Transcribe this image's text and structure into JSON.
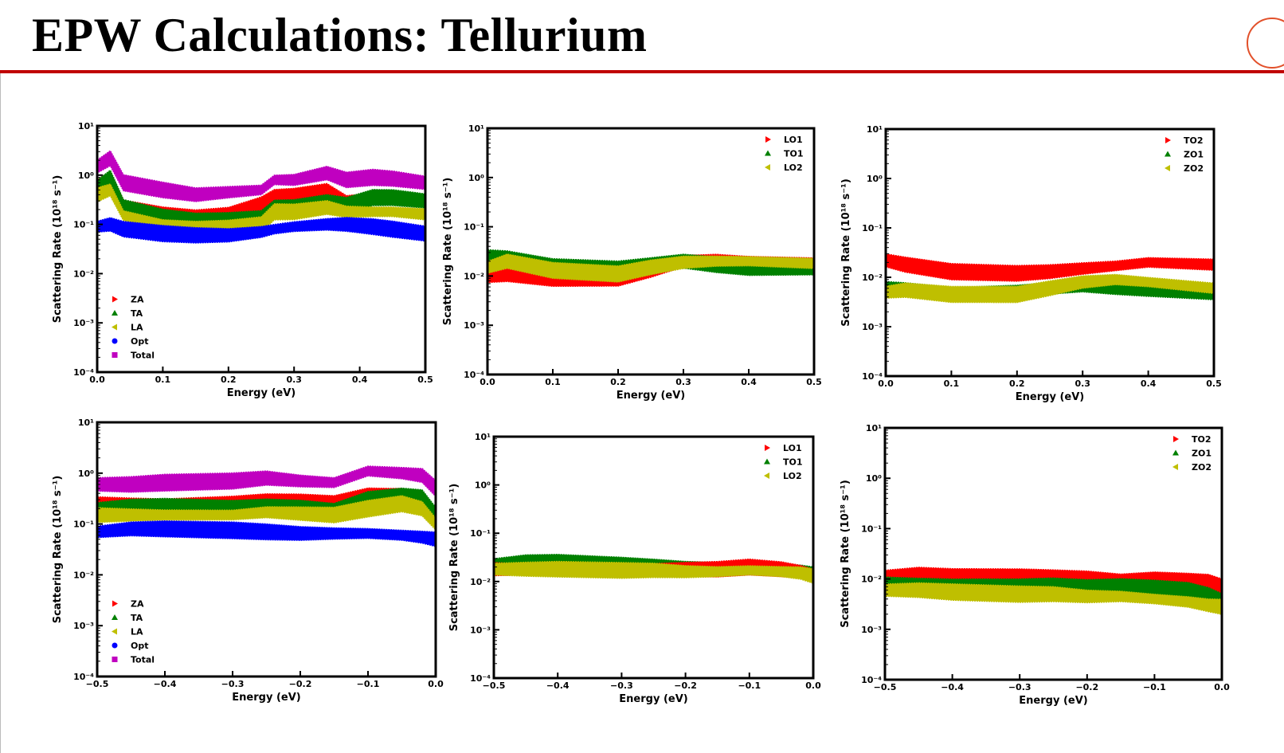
{
  "slide": {
    "title": "EPW Calculations: Tellurium"
  },
  "chart_data": [
    {
      "type": "area",
      "title": "",
      "xlabel": "Energy (eV)",
      "ylabel": "Scattering Rate (10¹⁸ s⁻¹)",
      "xlim": [
        0,
        0.5
      ],
      "ylim": [
        0.0001,
        10
      ],
      "yscale": "log",
      "legend": "bottom-left",
      "xticks": [
        "0.0",
        "0.1",
        "0.2",
        "0.3",
        "0.4",
        "0.5"
      ],
      "xtick_values": [
        0,
        0.1,
        0.2,
        0.3,
        0.4,
        0.5
      ],
      "yticks": [
        "10⁻⁴",
        "10⁻³",
        "10⁻²",
        "10⁻¹",
        "10⁰",
        "10¹"
      ],
      "x": [
        0,
        0.02,
        0.04,
        0.1,
        0.15,
        0.2,
        0.25,
        0.27,
        0.3,
        0.35,
        0.38,
        0.42,
        0.45,
        0.5
      ],
      "series": [
        {
          "name": "Total",
          "color": "#c000c0",
          "marker": "square",
          "values": [
            1.5,
            2.2,
            0.7,
            0.5,
            0.4,
            0.45,
            0.5,
            0.8,
            0.8,
            1.1,
            0.8,
            0.9,
            0.85,
            0.7
          ]
        },
        {
          "name": "ZA",
          "color": "#ff0000",
          "marker": "triangle-right",
          "values": [
            0.6,
            0.9,
            0.25,
            0.18,
            0.15,
            0.16,
            0.25,
            0.35,
            0.38,
            0.5,
            0.3,
            0.35,
            0.35,
            0.3
          ]
        },
        {
          "name": "TA",
          "color": "#008000",
          "marker": "triangle-up",
          "values": [
            0.6,
            0.9,
            0.22,
            0.14,
            0.12,
            0.13,
            0.15,
            0.25,
            0.25,
            0.3,
            0.25,
            0.35,
            0.35,
            0.3
          ]
        },
        {
          "name": "LA",
          "color": "#bfbf00",
          "marker": "triangle-left",
          "values": [
            0.4,
            0.5,
            0.15,
            0.1,
            0.09,
            0.09,
            0.1,
            0.18,
            0.18,
            0.22,
            0.18,
            0.18,
            0.18,
            0.16
          ]
        },
        {
          "name": "Opt",
          "color": "#0000ff",
          "marker": "circle",
          "values": [
            0.09,
            0.1,
            0.08,
            0.065,
            0.06,
            0.06,
            0.07,
            0.08,
            0.09,
            0.1,
            0.1,
            0.09,
            0.08,
            0.065
          ]
        }
      ],
      "legend_order": [
        "ZA",
        "TA",
        "LA",
        "Opt",
        "Total"
      ]
    },
    {
      "type": "area",
      "title": "",
      "xlabel": "Energy (eV)",
      "ylabel": "Scattering Rate (10¹⁸ s⁻¹)",
      "xlim": [
        0,
        0.5
      ],
      "ylim": [
        0.0001,
        10
      ],
      "yscale": "log",
      "legend": "top-right",
      "xticks": [
        "0.0",
        "0.1",
        "0.2",
        "0.3",
        "0.4",
        "0.5"
      ],
      "xtick_values": [
        0,
        0.1,
        0.2,
        0.3,
        0.4,
        0.5
      ],
      "yticks": [
        "10⁻⁴",
        "10⁻³",
        "10⁻²",
        "10⁻¹",
        "10⁰",
        "10¹"
      ],
      "x": [
        0,
        0.03,
        0.1,
        0.2,
        0.25,
        0.3,
        0.35,
        0.4,
        0.5
      ],
      "series": [
        {
          "name": "LO1",
          "color": "#ff0000",
          "marker": "triangle-right",
          "values": [
            0.01,
            0.011,
            0.009,
            0.009,
            0.013,
            0.02,
            0.022,
            0.02,
            0.018
          ]
        },
        {
          "name": "TO1",
          "color": "#008000",
          "marker": "triangle-up",
          "values": [
            0.025,
            0.025,
            0.018,
            0.016,
            0.018,
            0.02,
            0.017,
            0.015,
            0.015
          ]
        },
        {
          "name": "LO2",
          "color": "#bfbf00",
          "marker": "triangle-left",
          "values": [
            0.015,
            0.02,
            0.013,
            0.011,
            0.015,
            0.019,
            0.02,
            0.02,
            0.018
          ]
        }
      ],
      "legend_order": [
        "LO1",
        "TO1",
        "LO2"
      ]
    },
    {
      "type": "area",
      "title": "",
      "xlabel": "Energy (eV)",
      "ylabel": "Scattering Rate (10¹⁸ s⁻¹)",
      "xlim": [
        0,
        0.5
      ],
      "ylim": [
        0.0001,
        10
      ],
      "yscale": "log",
      "legend": "top-right",
      "xticks": [
        "0.0",
        "0.1",
        "0.2",
        "0.3",
        "0.4",
        "0.5"
      ],
      "xtick_values": [
        0,
        0.1,
        0.2,
        0.3,
        0.4,
        0.5
      ],
      "yticks": [
        "10⁻⁴",
        "10⁻³",
        "10⁻²",
        "10⁻¹",
        "10⁰",
        "10¹"
      ],
      "x": [
        0,
        0.03,
        0.1,
        0.2,
        0.25,
        0.3,
        0.35,
        0.4,
        0.5
      ],
      "series": [
        {
          "name": "TO2",
          "color": "#ff0000",
          "marker": "triangle-right",
          "values": [
            0.022,
            0.018,
            0.013,
            0.012,
            0.013,
            0.015,
            0.017,
            0.02,
            0.018
          ]
        },
        {
          "name": "ZO1",
          "color": "#008000",
          "marker": "triangle-up",
          "values": [
            0.006,
            0.006,
            0.005,
            0.0055,
            0.006,
            0.007,
            0.0065,
            0.006,
            0.005
          ]
        },
        {
          "name": "ZO2",
          "color": "#bfbf00",
          "marker": "triangle-left",
          "values": [
            0.005,
            0.0055,
            0.0045,
            0.0045,
            0.006,
            0.008,
            0.009,
            0.008,
            0.006
          ]
        }
      ],
      "legend_order": [
        "TO2",
        "ZO1",
        "ZO2"
      ]
    },
    {
      "type": "area",
      "title": "",
      "xlabel": "Energy (eV)",
      "ylabel": "Scattering Rate (10¹⁸ s⁻¹)",
      "xlim": [
        -0.5,
        0
      ],
      "ylim": [
        0.0001,
        10
      ],
      "yscale": "log",
      "legend": "bottom-left",
      "xticks": [
        "−0.5",
        "−0.4",
        "−0.3",
        "−0.2",
        "−0.1",
        "0.0"
      ],
      "xtick_values": [
        -0.5,
        -0.4,
        -0.3,
        -0.2,
        -0.1,
        0
      ],
      "yticks": [
        "10⁻⁴",
        "10⁻³",
        "10⁻²",
        "10⁻¹",
        "10⁰",
        "10¹"
      ],
      "x": [
        -0.5,
        -0.45,
        -0.4,
        -0.3,
        -0.25,
        -0.2,
        -0.15,
        -0.1,
        -0.05,
        -0.02,
        0
      ],
      "series": [
        {
          "name": "Total",
          "color": "#c000c0",
          "marker": "square",
          "values": [
            0.6,
            0.6,
            0.65,
            0.7,
            0.8,
            0.7,
            0.65,
            1.1,
            1.0,
            0.9,
            0.5
          ]
        },
        {
          "name": "ZA",
          "color": "#ff0000",
          "marker": "triangle-right",
          "values": [
            0.25,
            0.25,
            0.25,
            0.28,
            0.3,
            0.28,
            0.25,
            0.35,
            0.35,
            0.3,
            0.15
          ]
        },
        {
          "name": "TA",
          "color": "#008000",
          "marker": "triangle-up",
          "values": [
            0.2,
            0.22,
            0.22,
            0.2,
            0.22,
            0.22,
            0.2,
            0.35,
            0.4,
            0.35,
            0.15
          ]
        },
        {
          "name": "LA",
          "color": "#bfbf00",
          "marker": "triangle-left",
          "values": [
            0.15,
            0.15,
            0.15,
            0.15,
            0.17,
            0.16,
            0.15,
            0.2,
            0.25,
            0.2,
            0.1
          ]
        },
        {
          "name": "Opt",
          "color": "#0000ff",
          "marker": "circle",
          "values": [
            0.07,
            0.08,
            0.08,
            0.075,
            0.07,
            0.065,
            0.065,
            0.065,
            0.06,
            0.055,
            0.05
          ]
        }
      ],
      "legend_order": [
        "ZA",
        "TA",
        "LA",
        "Opt",
        "Total"
      ]
    },
    {
      "type": "area",
      "title": "",
      "xlabel": "Energy (eV)",
      "ylabel": "Scattering Rate (10¹⁸ s⁻¹)",
      "xlim": [
        -0.5,
        0
      ],
      "ylim": [
        0.0001,
        10
      ],
      "yscale": "log",
      "legend": "top-right",
      "xticks": [
        "−0.5",
        "−0.4",
        "−0.3",
        "−0.2",
        "−0.1",
        "0.0"
      ],
      "xtick_values": [
        -0.5,
        -0.4,
        -0.3,
        -0.2,
        -0.1,
        0
      ],
      "yticks": [
        "10⁻⁴",
        "10⁻³",
        "10⁻²",
        "10⁻¹",
        "10⁰",
        "10¹"
      ],
      "x": [
        -0.5,
        -0.45,
        -0.4,
        -0.3,
        -0.25,
        -0.2,
        -0.15,
        -0.1,
        -0.05,
        -0.02,
        0
      ],
      "series": [
        {
          "name": "TO1",
          "color": "#008000",
          "marker": "triangle-up",
          "values": [
            0.022,
            0.025,
            0.025,
            0.022,
            0.021,
            0.02,
            0.02,
            0.02,
            0.018,
            0.016,
            0.014
          ]
        },
        {
          "name": "LO1",
          "color": "#ff0000",
          "marker": "triangle-right",
          "values": [
            0.018,
            0.018,
            0.018,
            0.018,
            0.018,
            0.018,
            0.018,
            0.02,
            0.018,
            0.016,
            0.014
          ]
        },
        {
          "name": "LO2",
          "color": "#bfbf00",
          "marker": "triangle-left",
          "values": [
            0.018,
            0.018,
            0.018,
            0.017,
            0.017,
            0.016,
            0.016,
            0.017,
            0.016,
            0.015,
            0.013
          ]
        }
      ],
      "legend_order": [
        "LO1",
        "TO1",
        "LO2"
      ]
    },
    {
      "type": "area",
      "title": "",
      "xlabel": "Energy (eV)",
      "ylabel": "Scattering Rate (10¹⁸ s⁻¹)",
      "xlim": [
        -0.5,
        0
      ],
      "ylim": [
        0.0001,
        10
      ],
      "yscale": "log",
      "legend": "top-right",
      "xticks": [
        "−0.5",
        "−0.4",
        "−0.3",
        "−0.2",
        "−0.1",
        "0.0"
      ],
      "xtick_values": [
        -0.5,
        -0.4,
        -0.3,
        -0.2,
        -0.1,
        0
      ],
      "yticks": [
        "10⁻⁴",
        "10⁻³",
        "10⁻²",
        "10⁻¹",
        "10⁰",
        "10¹"
      ],
      "x": [
        -0.5,
        -0.45,
        -0.4,
        -0.3,
        -0.25,
        -0.2,
        -0.15,
        -0.1,
        -0.05,
        -0.02,
        0
      ],
      "series": [
        {
          "name": "TO2",
          "color": "#ff0000",
          "marker": "triangle-right",
          "values": [
            0.011,
            0.012,
            0.011,
            0.011,
            0.011,
            0.011,
            0.01,
            0.011,
            0.01,
            0.009,
            0.007
          ]
        },
        {
          "name": "ZO1",
          "color": "#008000",
          "marker": "triangle-up",
          "values": [
            0.008,
            0.008,
            0.008,
            0.008,
            0.008,
            0.007,
            0.007,
            0.0065,
            0.006,
            0.005,
            0.004
          ]
        },
        {
          "name": "ZO2",
          "color": "#bfbf00",
          "marker": "triangle-left",
          "values": [
            0.006,
            0.006,
            0.0055,
            0.005,
            0.005,
            0.0045,
            0.0045,
            0.004,
            0.0035,
            0.003,
            0.0028
          ]
        }
      ],
      "legend_order": [
        "TO2",
        "ZO1",
        "ZO2"
      ]
    }
  ]
}
